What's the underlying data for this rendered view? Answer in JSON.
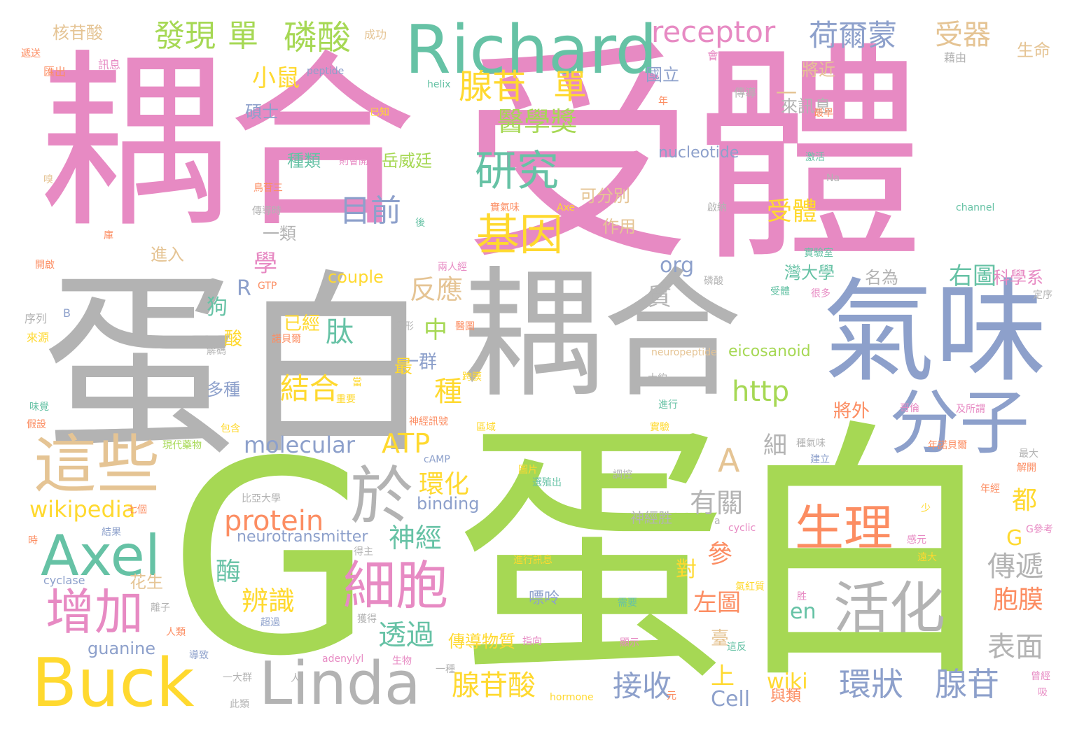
{
  "palette": {
    "pink": "#e78ac3",
    "green": "#a6d854",
    "gray": "#b3b3b3",
    "blue": "#8da0cb",
    "yellow": "#ffd92f",
    "teal": "#66c2a5",
    "tan": "#e5c494",
    "orange": "#fc8d62"
  },
  "words": [
    {
      "text": "耦合",
      "color": "pink"
    },
    {
      "text": "受體",
      "color": "pink"
    },
    {
      "text": "蛋白",
      "color": "gray"
    },
    {
      "text": "耦合",
      "color": "gray"
    },
    {
      "text": "G",
      "color": "green"
    },
    {
      "text": "蛋白",
      "color": "green"
    },
    {
      "text": "氣味",
      "color": "blue"
    },
    {
      "text": "分子",
      "color": "blue"
    },
    {
      "text": "Richard",
      "color": "teal"
    },
    {
      "text": "Buck",
      "color": "yellow"
    },
    {
      "text": "Linda",
      "color": "gray"
    },
    {
      "text": "Axel",
      "color": "teal"
    },
    {
      "text": "這些",
      "color": "tan"
    },
    {
      "text": "生理",
      "color": "orange"
    },
    {
      "text": "活化",
      "color": "gray"
    },
    {
      "text": "細胞",
      "color": "pink"
    },
    {
      "text": "增加",
      "color": "pink"
    },
    {
      "text": "於",
      "color": "gray"
    },
    {
      "text": "研究",
      "color": "teal"
    },
    {
      "text": "基因",
      "color": "yellow"
    },
    {
      "text": "receptor",
      "color": "pink"
    },
    {
      "text": "發現",
      "color": "green"
    },
    {
      "text": "單",
      "color": "green"
    },
    {
      "text": "磷酸",
      "color": "green"
    },
    {
      "text": "腺苷",
      "color": "yellow"
    },
    {
      "text": "單",
      "color": "yellow"
    },
    {
      "text": "荷爾蒙",
      "color": "blue"
    },
    {
      "text": "受器",
      "color": "tan"
    },
    {
      "text": "目前",
      "color": "blue"
    },
    {
      "text": "醫學獎",
      "color": "green"
    },
    {
      "text": "小鼠",
      "color": "yellow"
    },
    {
      "text": "A",
      "color": "tan"
    },
    {
      "text": "protein",
      "color": "orange"
    },
    {
      "text": "神經",
      "color": "teal"
    },
    {
      "text": "環狀",
      "color": "blue"
    },
    {
      "text": "腺苷",
      "color": "blue"
    },
    {
      "text": "接收",
      "color": "blue"
    },
    {
      "text": "腺苷酸",
      "color": "yellow"
    },
    {
      "text": "透過",
      "color": "teal"
    },
    {
      "text": "辨識",
      "color": "yellow"
    },
    {
      "text": "結合",
      "color": "yellow"
    },
    {
      "text": "http",
      "color": "green"
    },
    {
      "text": "ATP",
      "color": "yellow"
    },
    {
      "text": "環化",
      "color": "yellow"
    },
    {
      "text": "wikipedia",
      "color": "yellow"
    },
    {
      "text": "molecular",
      "color": "blue"
    },
    {
      "text": "肽",
      "color": "teal"
    },
    {
      "text": "反應",
      "color": "tan"
    },
    {
      "text": "傳遞",
      "color": "gray"
    },
    {
      "text": "表面",
      "color": "gray"
    },
    {
      "text": "胞膜",
      "color": "orange"
    },
    {
      "text": "有關",
      "color": "gray"
    },
    {
      "text": "左圖",
      "color": "orange"
    },
    {
      "text": "右圖",
      "color": "teal"
    },
    {
      "text": "受體",
      "color": "yellow"
    },
    {
      "text": "種",
      "color": "yellow"
    },
    {
      "text": "中",
      "color": "green"
    },
    {
      "text": "都",
      "color": "yellow"
    },
    {
      "text": "G",
      "color": "yellow"
    },
    {
      "text": "參",
      "color": "orange"
    },
    {
      "text": "酶",
      "color": "teal"
    },
    {
      "text": "學",
      "color": "pink"
    },
    {
      "text": "R",
      "color": "blue"
    },
    {
      "text": "org",
      "color": "blue"
    },
    {
      "text": "質",
      "color": "gray"
    },
    {
      "text": "狗",
      "color": "teal"
    },
    {
      "text": "細",
      "color": "gray"
    },
    {
      "text": "上",
      "color": "yellow"
    },
    {
      "text": "對",
      "color": "yellow"
    },
    {
      "text": "en",
      "color": "teal"
    },
    {
      "text": "wiki",
      "color": "yellow"
    },
    {
      "text": "Cell",
      "color": "blue"
    },
    {
      "text": "guanine",
      "color": "blue"
    },
    {
      "text": "couple",
      "color": "yellow"
    },
    {
      "text": "binding",
      "color": "blue"
    },
    {
      "text": "neurotransmitter",
      "color": "blue"
    },
    {
      "text": "nucleotide",
      "color": "blue"
    },
    {
      "text": "eicosanoid",
      "color": "green"
    },
    {
      "text": "已經",
      "color": "yellow"
    },
    {
      "text": "一群",
      "color": "blue"
    },
    {
      "text": "將外",
      "color": "orange"
    },
    {
      "text": "一類",
      "color": "gray"
    },
    {
      "text": "多種",
      "color": "blue"
    },
    {
      "text": "國立",
      "color": "blue"
    },
    {
      "text": "灣大學",
      "color": "teal"
    },
    {
      "text": "科學系",
      "color": "pink"
    },
    {
      "text": "名為",
      "color": "gray"
    },
    {
      "text": "將近",
      "color": "tan"
    },
    {
      "text": "來訊息",
      "color": "gray"
    },
    {
      "text": "碩士",
      "color": "blue"
    },
    {
      "text": "種類",
      "color": "teal"
    },
    {
      "text": "岳威廷",
      "color": "green"
    },
    {
      "text": "可分別",
      "color": "tan"
    },
    {
      "text": "作用",
      "color": "tan"
    },
    {
      "text": "進入",
      "color": "tan"
    },
    {
      "text": "核苷酸",
      "color": "tan"
    },
    {
      "text": "生命",
      "color": "tan"
    },
    {
      "text": "一",
      "color": "tan"
    },
    {
      "text": "最",
      "color": "yellow"
    },
    {
      "text": "酸",
      "color": "yellow"
    },
    {
      "text": "傳導物質",
      "color": "yellow"
    },
    {
      "text": "嘌呤",
      "color": "blue"
    },
    {
      "text": "花生",
      "color": "tan"
    },
    {
      "text": "臺",
      "color": "tan"
    },
    {
      "text": "神經胜",
      "color": "gray"
    },
    {
      "text": "與類",
      "color": "orange"
    },
    {
      "text": "peptide",
      "color": "blue"
    },
    {
      "text": "helix",
      "color": "teal"
    },
    {
      "text": "channel",
      "color": "teal"
    },
    {
      "text": "GTP",
      "color": "orange"
    },
    {
      "text": "cAMP",
      "color": "blue"
    },
    {
      "text": "cyclase",
      "color": "blue"
    },
    {
      "text": "adenylyl",
      "color": "pink"
    },
    {
      "text": "hormone",
      "color": "yellow"
    },
    {
      "text": "Axe",
      "color": "yellow"
    },
    {
      "text": "neuropeptide",
      "color": "tan"
    },
    {
      "text": "cyclic",
      "color": "pink"
    },
    {
      "text": "Na",
      "color": "gray"
    },
    {
      "text": "B",
      "color": "blue"
    },
    {
      "text": "a",
      "color": "gray"
    },
    {
      "text": "成功",
      "color": "tan"
    },
    {
      "text": "訊息",
      "color": "pink"
    },
    {
      "text": "匯出",
      "color": "orange"
    },
    {
      "text": "已知",
      "color": "yellow"
    },
    {
      "text": "傳導",
      "color": "gray"
    },
    {
      "text": "藉由",
      "color": "gray"
    },
    {
      "text": "會",
      "color": "pink"
    },
    {
      "text": "年",
      "color": "orange"
    },
    {
      "text": "最早",
      "color": "orange"
    },
    {
      "text": "激活",
      "color": "teal"
    },
    {
      "text": "纖毛",
      "color": "pink"
    },
    {
      "text": "嗅",
      "color": "tan"
    },
    {
      "text": "則會開",
      "color": "pink"
    },
    {
      "text": "鳥苷三",
      "color": "orange"
    },
    {
      "text": "開啟",
      "color": "orange"
    },
    {
      "text": "序列",
      "color": "gray"
    },
    {
      "text": "來源",
      "color": "yellow"
    },
    {
      "text": "傳導時",
      "color": "gray"
    },
    {
      "text": "庫",
      "color": "orange"
    },
    {
      "text": "後",
      "color": "teal"
    },
    {
      "text": "實氣味",
      "color": "orange"
    },
    {
      "text": "啟納",
      "color": "gray"
    },
    {
      "text": "兩人經",
      "color": "pink"
    },
    {
      "text": "磷酸",
      "color": "gray"
    },
    {
      "text": "受體",
      "color": "teal"
    },
    {
      "text": "很多",
      "color": "pink"
    },
    {
      "text": "實驗室",
      "color": "teal"
    },
    {
      "text": "定序",
      "color": "gray"
    },
    {
      "text": "環形",
      "color": "gray"
    },
    {
      "text": "諾貝爾",
      "color": "orange"
    },
    {
      "text": "醫圖",
      "color": "orange"
    },
    {
      "text": "當",
      "color": "yellow"
    },
    {
      "text": "大約",
      "color": "gray"
    },
    {
      "text": "跨膜",
      "color": "yellow"
    },
    {
      "text": "解碼",
      "color": "gray"
    },
    {
      "text": "味覺",
      "color": "teal"
    },
    {
      "text": "假設",
      "color": "orange"
    },
    {
      "text": "重要",
      "color": "yellow"
    },
    {
      "text": "包含",
      "color": "yellow"
    },
    {
      "text": "神經訊號",
      "color": "orange"
    },
    {
      "text": "區域",
      "color": "yellow"
    },
    {
      "text": "進行",
      "color": "teal"
    },
    {
      "text": "哥倫",
      "color": "pink"
    },
    {
      "text": "實驗",
      "color": "yellow"
    },
    {
      "text": "及所謂",
      "color": "pink"
    },
    {
      "text": "種氣味",
      "color": "gray"
    },
    {
      "text": "建立",
      "color": "blue"
    },
    {
      "text": "年諾貝爾",
      "color": "orange"
    },
    {
      "text": "最大",
      "color": "gray"
    },
    {
      "text": "解開",
      "color": "orange"
    },
    {
      "text": "現代藥物",
      "color": "green"
    },
    {
      "text": "圖片",
      "color": "yellow"
    },
    {
      "text": "選殖出",
      "color": "teal"
    },
    {
      "text": "調控",
      "color": "gray"
    },
    {
      "text": "比亞大學",
      "color": "gray"
    },
    {
      "text": "七個",
      "color": "orange"
    },
    {
      "text": "結果",
      "color": "blue"
    },
    {
      "text": "時",
      "color": "orange"
    },
    {
      "text": "得主",
      "color": "gray"
    },
    {
      "text": "進行訊息",
      "color": "yellow"
    },
    {
      "text": "少",
      "color": "yellow"
    },
    {
      "text": "感元",
      "color": "pink"
    },
    {
      "text": "遠大",
      "color": "yellow"
    },
    {
      "text": "G參考",
      "color": "pink"
    },
    {
      "text": "年經",
      "color": "orange"
    },
    {
      "text": "需要",
      "color": "teal"
    },
    {
      "text": "胜",
      "color": "pink"
    },
    {
      "text": "氣紅質",
      "color": "yellow"
    },
    {
      "text": "離子",
      "color": "gray"
    },
    {
      "text": "超過",
      "color": "blue"
    },
    {
      "text": "獲得",
      "color": "gray"
    },
    {
      "text": "指向",
      "color": "pink"
    },
    {
      "text": "顯示",
      "color": "pink"
    },
    {
      "text": "這反",
      "color": "teal"
    },
    {
      "text": "人類",
      "color": "orange"
    },
    {
      "text": "導致",
      "color": "blue"
    },
    {
      "text": "生物",
      "color": "pink"
    },
    {
      "text": "一種",
      "color": "gray"
    },
    {
      "text": "一大群",
      "color": "gray"
    },
    {
      "text": "人",
      "color": "gray"
    },
    {
      "text": "元",
      "color": "orange"
    },
    {
      "text": "此類",
      "color": "gray"
    },
    {
      "text": "曾經",
      "color": "pink"
    },
    {
      "text": "吸",
      "color": "pink"
    },
    {
      "text": "遞送",
      "color": "orange"
    }
  ]
}
